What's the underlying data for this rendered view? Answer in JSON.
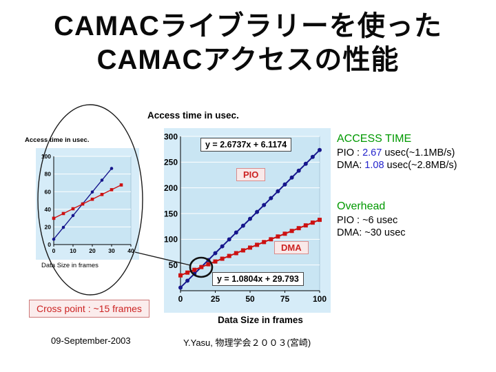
{
  "title": {
    "line1": "CAMACライブラリーを使った",
    "line2": "CAMACアクセスの性能"
  },
  "summary": {
    "access_time_heading": "ACCESS TIME",
    "pio_prefix": "PIO : ",
    "pio_value": "2.67",
    "pio_suffix": " usec(~1.1MB/s)",
    "dma_prefix": "DMA: ",
    "dma_value": "1.08",
    "dma_suffix": " usec(~2.8MB/s)",
    "overhead_heading": "Overhead",
    "overhead_pio": "PIO : ~6 usec",
    "overhead_dma": "DMA: ~30 usec"
  },
  "crosspoint_label": "Cross point : ~15 frames",
  "footer": {
    "date": "09-September-2003",
    "credit": "Y.Yasu, 物理学会２００３(宮崎)"
  },
  "colors": {
    "chart_bg": "#d6ecf8",
    "plot_bg": "#c9e5f3",
    "grid": "#ffffff",
    "green": "#009900",
    "blue": "#2323cc",
    "red": "#cc2222",
    "pio_series": "#16168c",
    "dma_series": "#cc1111"
  },
  "chart_data": [
    {
      "type": "scatter",
      "title": "Access time in usec.",
      "xlabel": "Data Size in frames",
      "ylabel": "Access time in usec.",
      "xlim": [
        0,
        100
      ],
      "ylim": [
        0,
        300
      ],
      "xticks": [
        0,
        25,
        50,
        75,
        100
      ],
      "yticks": [
        50,
        100,
        150,
        200,
        250,
        300
      ],
      "grid": "horizontal",
      "legend": "none",
      "equations": {
        "pio": "y = 2.6737x + 6.1174",
        "dma": "y = 1.0804x + 29.793"
      },
      "cross_point_frames": 15,
      "series": [
        {
          "name": "PIO",
          "marker": "circle",
          "color": "#16168c",
          "x": [
            0,
            5,
            10,
            15,
            20,
            25,
            30,
            35,
            40,
            45,
            50,
            55,
            60,
            65,
            70,
            75,
            80,
            85,
            90,
            95,
            100
          ],
          "y": [
            6.1,
            19.5,
            32.9,
            46.2,
            59.6,
            73.0,
            86.3,
            99.7,
            113.1,
            126.4,
            139.8,
            153.2,
            166.5,
            179.9,
            193.3,
            206.6,
            220.0,
            233.4,
            246.7,
            260.1,
            273.5
          ]
        },
        {
          "name": "DMA",
          "marker": "square",
          "color": "#cc1111",
          "x": [
            0,
            5,
            10,
            15,
            20,
            25,
            30,
            35,
            40,
            45,
            50,
            55,
            60,
            65,
            70,
            75,
            80,
            85,
            90,
            95,
            100
          ],
          "y": [
            29.8,
            35.2,
            40.6,
            46.0,
            51.4,
            56.8,
            62.2,
            67.6,
            73.0,
            78.4,
            83.8,
            89.2,
            94.6,
            100.0,
            105.4,
            110.8,
            116.2,
            121.6,
            127.0,
            132.4,
            137.8
          ]
        }
      ]
    },
    {
      "type": "scatter",
      "title": "Access time in usec.",
      "xlabel": "Data Size in frames",
      "ylabel": "Access time in usec.",
      "xlim": [
        0,
        40
      ],
      "ylim": [
        0,
        100
      ],
      "xticks": [
        0,
        10,
        20,
        30,
        40
      ],
      "yticks": [
        0,
        20,
        40,
        60,
        80,
        100
      ],
      "grid": "horizontal",
      "legend": "none",
      "series": [
        {
          "name": "PIO",
          "marker": "circle",
          "color": "#16168c",
          "x": [
            0,
            5,
            10,
            15,
            20,
            25,
            30
          ],
          "y": [
            6.1,
            19.5,
            32.9,
            46.2,
            59.6,
            73.0,
            86.3
          ]
        },
        {
          "name": "DMA",
          "marker": "square",
          "color": "#cc1111",
          "x": [
            0,
            5,
            10,
            15,
            20,
            25,
            30,
            35
          ],
          "y": [
            29.8,
            35.2,
            40.6,
            46.0,
            51.4,
            56.8,
            62.2,
            67.6
          ]
        }
      ]
    }
  ]
}
